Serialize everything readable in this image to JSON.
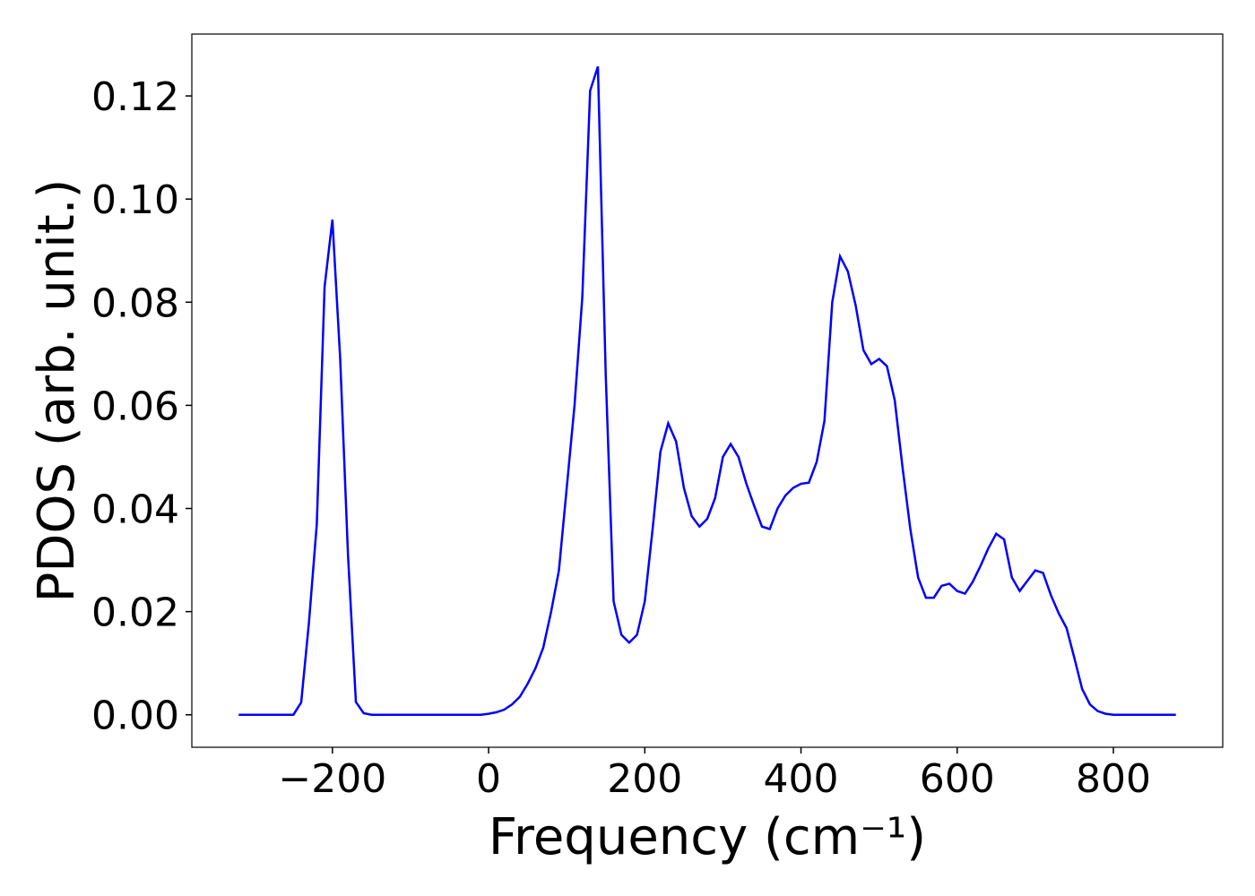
{
  "chart_data": {
    "type": "line",
    "xlabel": "Frequency (cm⁻¹)",
    "ylabel": "PDOS (arb. unit.)",
    "x": [
      -320,
      -310,
      -300,
      -290,
      -280,
      -270,
      -260,
      -250,
      -240,
      -230,
      -220,
      -210,
      -200,
      -190,
      -180,
      -170,
      -160,
      -150,
      -140,
      -130,
      -120,
      -110,
      -100,
      -90,
      -80,
      -70,
      -60,
      -50,
      -40,
      -30,
      -20,
      -10,
      0,
      10,
      20,
      30,
      40,
      50,
      60,
      70,
      80,
      90,
      100,
      110,
      120,
      130,
      140,
      150,
      160,
      170,
      180,
      190,
      200,
      210,
      220,
      230,
      240,
      250,
      260,
      270,
      280,
      290,
      300,
      310,
      320,
      330,
      340,
      350,
      360,
      370,
      380,
      390,
      400,
      410,
      420,
      430,
      440,
      450,
      460,
      470,
      480,
      490,
      500,
      510,
      520,
      530,
      540,
      550,
      560,
      570,
      580,
      590,
      600,
      610,
      620,
      630,
      640,
      650,
      660,
      670,
      680,
      690,
      700,
      710,
      720,
      730,
      740,
      750,
      760,
      770,
      780,
      790,
      800,
      810,
      820,
      830,
      840,
      850,
      860,
      870,
      880
    ],
    "series": [
      {
        "color": "#0000ff",
        "values": [
          0,
          0,
          0,
          0,
          0,
          0,
          0,
          0,
          0.0024,
          0.018,
          0.037,
          0.083,
          0.096,
          0.069,
          0.031,
          0.0025,
          0.0003,
          0,
          0,
          0,
          0,
          0,
          0,
          0,
          0,
          0,
          0,
          0,
          0,
          0,
          0,
          0,
          0.0002,
          0.0005,
          0.001,
          0.002,
          0.0035,
          0.006,
          0.009,
          0.013,
          0.02,
          0.028,
          0.044,
          0.06,
          0.081,
          0.121,
          0.1257,
          0.066,
          0.022,
          0.0155,
          0.014,
          0.0155,
          0.022,
          0.036,
          0.051,
          0.0565,
          0.053,
          0.044,
          0.0385,
          0.0365,
          0.038,
          0.042,
          0.05,
          0.0525,
          0.05,
          0.0448,
          0.0405,
          0.0365,
          0.036,
          0.04,
          0.0425,
          0.044,
          0.0448,
          0.045,
          0.049,
          0.057,
          0.08,
          0.0889,
          0.086,
          0.0794,
          0.0707,
          0.068,
          0.069,
          0.0676,
          0.061,
          0.048,
          0.036,
          0.0266,
          0.0227,
          0.0227,
          0.025,
          0.0254,
          0.024,
          0.0235,
          0.0258,
          0.0289,
          0.0323,
          0.0351,
          0.034,
          0.0266,
          0.024,
          0.026,
          0.028,
          0.0275,
          0.0232,
          0.0197,
          0.0168,
          0.011,
          0.005,
          0.002,
          0.0007,
          0.0002,
          0,
          0,
          0,
          0,
          0,
          0,
          0,
          0,
          0
        ]
      }
    ],
    "xlim": [
      -380,
      940
    ],
    "ylim": [
      -0.0063,
      0.132
    ],
    "xticks": [
      {
        "value": -200,
        "label": "−200"
      },
      0,
      200,
      400,
      600,
      800
    ],
    "yticks": [
      {
        "value": 0,
        "label": "0.00"
      },
      {
        "value": 0.02,
        "label": "0.02"
      },
      {
        "value": 0.04,
        "label": "0.04"
      },
      {
        "value": 0.06,
        "label": "0.06"
      },
      {
        "value": 0.08,
        "label": "0.08"
      },
      {
        "value": 0.1,
        "label": "0.10"
      },
      {
        "value": 0.12,
        "label": "0.12"
      }
    ]
  }
}
